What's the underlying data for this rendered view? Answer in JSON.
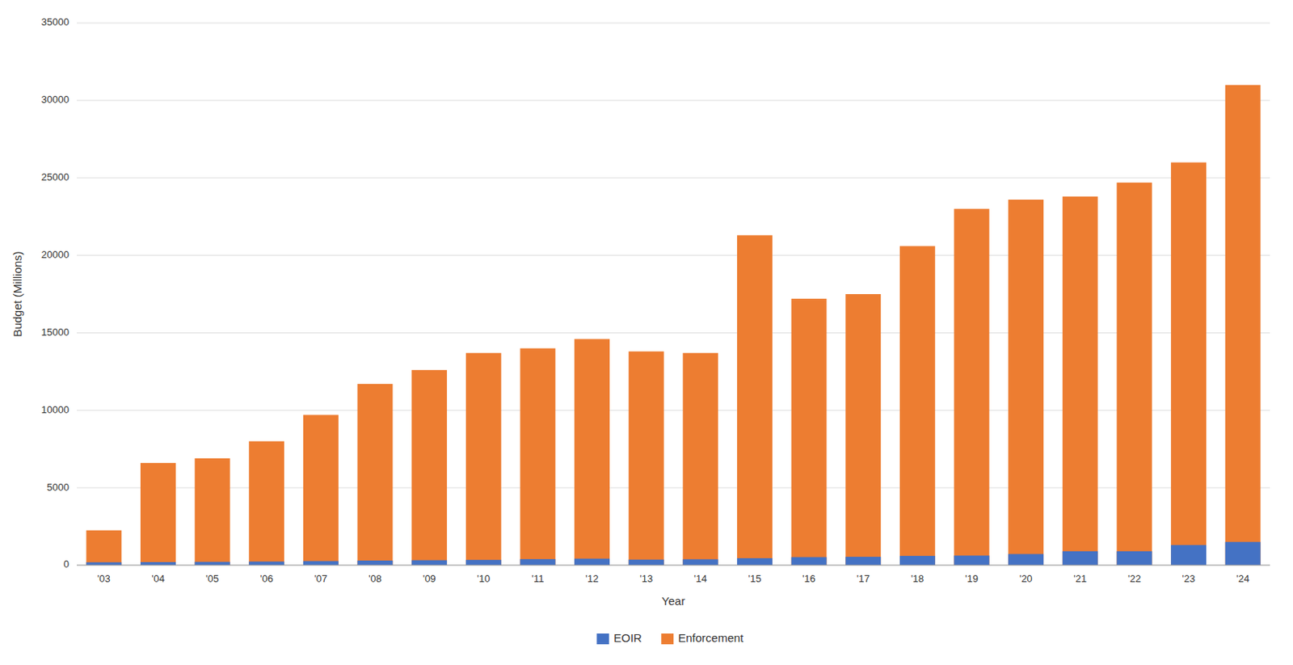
{
  "chart_data": {
    "type": "bar",
    "x_label": "Year",
    "y_label": "Budget (Millions)",
    "categories": [
      "'03",
      "'04",
      "'05",
      "'06",
      "'07",
      "'08",
      "'09",
      "'10",
      "'11",
      "'12",
      "'13",
      "'14",
      "'15",
      "'16",
      "'17",
      "'18",
      "'19",
      "'20",
      "'21",
      "'22",
      "'23",
      "'24"
    ],
    "series": [
      {
        "name": "EOIR",
        "color": "#4472c4",
        "values": [
          186,
          198,
          213,
          232,
          265,
          298,
          320,
          340,
          390,
          420,
          360,
          380,
          450,
          520,
          540,
          600,
          620,
          720,
          900,
          900,
          1300,
          1500
        ]
      },
      {
        "name": "Enforcement",
        "color": "#ed7d31",
        "values": [
          2250,
          6600,
          6900,
          8000,
          9700,
          11700,
          12600,
          13700,
          14000,
          14600,
          13800,
          13700,
          21300,
          17200,
          17500,
          20600,
          23000,
          23600,
          23800,
          24700,
          26000,
          31000
        ]
      }
    ],
    "stacked": false,
    "ylim": [
      0,
      35000
    ],
    "yticks": [
      0,
      5000,
      10000,
      15000,
      20000,
      25000,
      30000,
      35000
    ],
    "grid": true,
    "legend": "bottom"
  }
}
